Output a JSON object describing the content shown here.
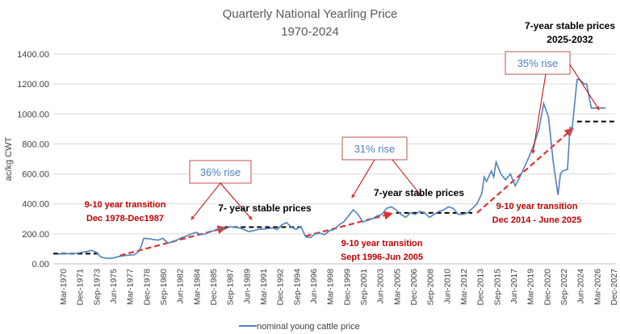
{
  "chart_data": {
    "type": "line",
    "title": "Quarterly National Yearling Price",
    "subtitle": "1970-2024",
    "ylabel": "ac/kg CWT",
    "xlabel": "",
    "ylim": [
      0,
      1400
    ],
    "yticks": [
      "0.00",
      "200.00",
      "400.00",
      "600.00",
      "800.00",
      "1000.00",
      "1200.00",
      "1400.00"
    ],
    "grid": true,
    "legend_position": "bottom",
    "x_tick_labels": [
      "Mar-1970",
      "Dec-1971",
      "Sep-1973",
      "Jun-1975",
      "Mar-1977",
      "Dec-1978",
      "Sep-1980",
      "Jun-1982",
      "Mar-1984",
      "Dec-1985",
      "Sep-1987",
      "Jun-1989",
      "Mar-1991",
      "Dec-1992",
      "Sep-1994",
      "Jun-1996",
      "Mar-1998",
      "Dec-1999",
      "Sep-2001",
      "Jun-2003",
      "Mar-2005",
      "Dec-2006",
      "Sep-2008",
      "Jun-2010",
      "Mar-2012",
      "Dec-2013",
      "Sep-2015",
      "Jun-2017",
      "Mar-2019",
      "Dec-2020",
      "Sep-2022",
      "Jun-2024",
      "Mar-2026",
      "Dec-2027"
    ],
    "x_range": [
      1970.0,
      2029.0
    ],
    "series": [
      {
        "name": "nominal young cattle price",
        "color": "#4f81bd",
        "x": [
          1970.5,
          1971.5,
          1972.5,
          1973.5,
          1974.0,
          1974.5,
          1975.0,
          1975.5,
          1976.0,
          1976.5,
          1977.0,
          1977.5,
          1978.0,
          1978.5,
          1979.0,
          1979.25,
          1979.5,
          1980.0,
          1980.5,
          1981.0,
          1981.5,
          1982.0,
          1982.5,
          1983.0,
          1983.5,
          1984.0,
          1984.5,
          1985.0,
          1985.5,
          1986.0,
          1986.5,
          1987.0,
          1987.5,
          1988.0,
          1988.5,
          1989.0,
          1989.5,
          1990.0,
          1990.5,
          1991.0,
          1991.5,
          1992.0,
          1992.5,
          1993.0,
          1993.5,
          1994.0,
          1994.5,
          1995.0,
          1995.5,
          1996.0,
          1996.5,
          1997.0,
          1997.5,
          1998.0,
          1998.5,
          1999.0,
          1999.5,
          2000.0,
          2000.5,
          2001.0,
          2001.5,
          2002.0,
          2002.5,
          2003.0,
          2003.5,
          2004.0,
          2004.5,
          2005.0,
          2005.5,
          2006.0,
          2006.5,
          2007.0,
          2007.5,
          2008.0,
          2008.5,
          2009.0,
          2009.5,
          2010.0,
          2010.5,
          2011.0,
          2011.5,
          2012.0,
          2012.5,
          2013.0,
          2013.5,
          2014.0,
          2014.5,
          2015.0,
          2015.25,
          2015.5,
          2016.0,
          2016.25,
          2016.5,
          2017.0,
          2017.5,
          2018.0,
          2018.5,
          2019.0,
          2019.5,
          2020.0,
          2020.5,
          2021.0,
          2021.5,
          2022.0,
          2022.5,
          2023.0,
          2023.25,
          2023.5,
          2024.0,
          2024.25,
          2024.5,
          2025.0,
          2025.25,
          2025.75,
          2026.0,
          2026.5,
          2027.0,
          2027.5,
          2028.0
        ],
        "values": [
          65,
          68,
          70,
          82,
          90,
          78,
          45,
          38,
          36,
          42,
          50,
          55,
          58,
          60,
          85,
          120,
          170,
          168,
          162,
          158,
          170,
          140,
          145,
          160,
          175,
          185,
          200,
          210,
          195,
          200,
          215,
          225,
          240,
          230,
          248,
          245,
          240,
          230,
          215,
          220,
          230,
          232,
          235,
          240,
          228,
          260,
          275,
          245,
          230,
          250,
          180,
          175,
          200,
          205,
          195,
          220,
          230,
          260,
          280,
          320,
          360,
          330,
          280,
          290,
          300,
          320,
          330,
          370,
          380,
          360,
          330,
          310,
          340,
          330,
          350,
          340,
          310,
          330,
          350,
          360,
          380,
          370,
          330,
          330,
          340,
          370,
          400,
          470,
          580,
          550,
          620,
          580,
          680,
          600,
          560,
          600,
          520,
          580,
          650,
          720,
          800,
          900,
          1070,
          980,
          680,
          460,
          600,
          620,
          630,
          910,
          910,
          1230,
          1230,
          1200,
          1200,
          1040,
          1040,
          1040,
          1040
        ]
      }
    ],
    "annotations": {
      "transition1_line1": "9-10 year transition",
      "transition1_line2": "Dec 1978-Dec1987",
      "stable1": "7- year stable prices",
      "rise1": "36% rise",
      "transition2_line1": "9-10 year transition",
      "transition2_line2": "Sept 1996-Jun 2005",
      "stable2": "7-year stable prices",
      "rise2": "31% rise",
      "transition3_line1": "9-10 year transition",
      "transition3_line2": "Dec 2014 - June 2025",
      "rise3": "35% rise",
      "stable3_line1": "7-year stable prices",
      "stable3_line2": "2025-2032"
    },
    "dashed_levels": [
      {
        "x": [
          1970.0,
          1975.0
        ],
        "y": 68,
        "color": "#000000"
      },
      {
        "x": [
          1988.0,
          1996.0
        ],
        "y": 245,
        "color": "#000000"
      },
      {
        "x": [
          2006.0,
          2014.0
        ],
        "y": 340,
        "color": "#000000"
      },
      {
        "x": [
          2025.0,
          2029.0
        ],
        "y": 950,
        "color": "#000000"
      }
    ],
    "trend_arrows": [
      {
        "from": [
          1977.0,
          55
        ],
        "to": [
          1988.0,
          240
        ]
      },
      {
        "from": [
          1996.5,
          185
        ],
        "to": [
          2005.5,
          335
        ]
      },
      {
        "from": [
          2014.5,
          340
        ],
        "to": [
          2024.5,
          900
        ]
      }
    ]
  }
}
